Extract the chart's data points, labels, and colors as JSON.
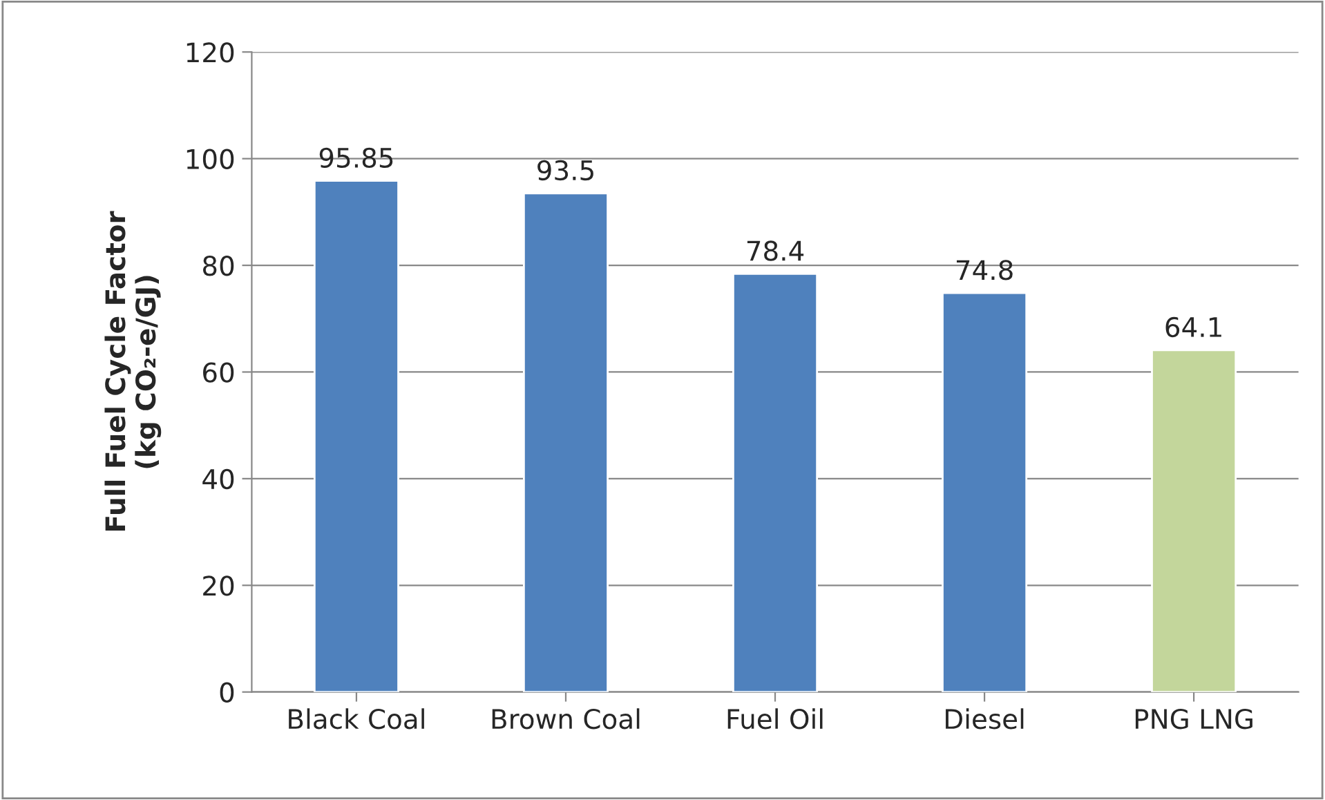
{
  "chart_data": {
    "type": "bar",
    "ylabel": "Full Fuel Cycle Factor\n(kg CO₂-e/GJ)",
    "categories": [
      "Black Coal",
      "Brown Coal",
      "Fuel Oil",
      "Diesel",
      "PNG LNG"
    ],
    "values": [
      95.85,
      93.5,
      78.4,
      74.8,
      64.1
    ],
    "colors": [
      "#4f81bd",
      "#4f81bd",
      "#4f81bd",
      "#4f81bd",
      "#c3d69b"
    ],
    "ylim": [
      0,
      120
    ],
    "yticks": [
      0,
      20,
      40,
      60,
      80,
      100,
      120
    ],
    "grid": "y",
    "data_labels": true
  }
}
